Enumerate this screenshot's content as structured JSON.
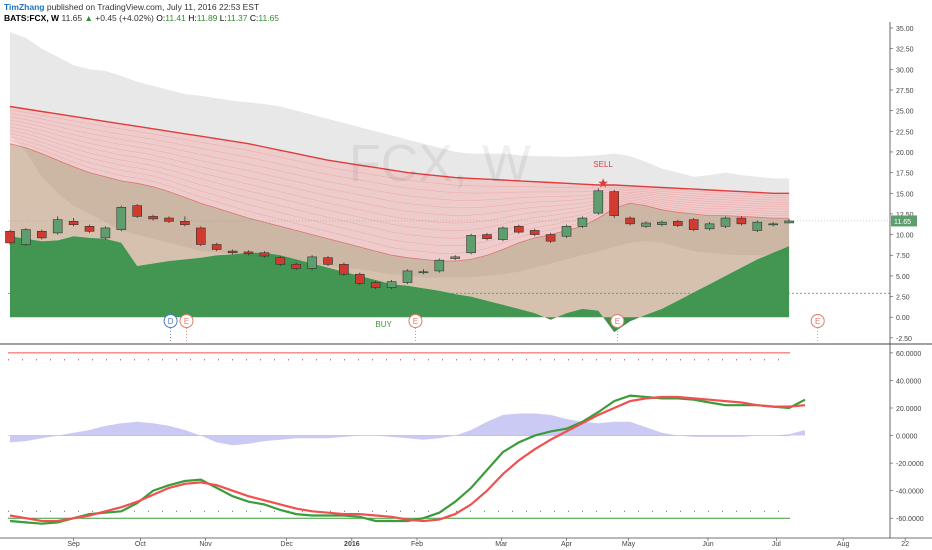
{
  "header": {
    "author": "TimZhang",
    "published": "published on TradingView.com, July 11, 2016 22:53 EST",
    "symbol": "BATS:FCX, W",
    "last": "11.65",
    "change": "+0.45 (+4.02%)",
    "open_label": "O:",
    "open": "11.41",
    "high_label": "H:",
    "high": "11.89",
    "low_label": "L:",
    "low": "11.37",
    "close_label": "C:",
    "close": "11.65"
  },
  "watermark": "FCX, W",
  "colors": {
    "up": "#5e9e6e",
    "down": "#d23a30",
    "macd": "#f05050",
    "signal": "#3c9c3c",
    "histogram": "#c4c4f4",
    "cloud": "#d9d9d9",
    "green_band": "#2e8b3e",
    "price_label": "#5e9e6e"
  },
  "chart_data": [
    {
      "type": "candlestick",
      "ylim": [
        -3,
        35
      ],
      "y_ticks": [
        -2.5,
        0,
        2.5,
        5,
        7.5,
        10,
        12.5,
        15,
        17.5,
        20,
        22.5,
        25,
        27.5,
        30,
        32.5,
        35
      ],
      "y_tick_labels": [
        "-2.50",
        "0.00",
        "2.50",
        "5.00",
        "7.50",
        "10.00",
        "12.50",
        "15.00",
        "17.50",
        "20.00",
        "22.50",
        "25.00",
        "27.50",
        "30.00",
        "32.50",
        "35.00"
      ],
      "x_labels": [
        "Sep",
        "Oct",
        "Nov",
        "Dec",
        "2016",
        "Feb",
        "Mar",
        "Apr",
        "May",
        "Jun",
        "Jul",
        "Aug",
        "22"
      ],
      "candles": [
        {
          "o": 10.4,
          "c": 9.0,
          "h": 10.6,
          "l": 8.8
        },
        {
          "o": 8.8,
          "c": 10.6,
          "h": 10.8,
          "l": 8.6
        },
        {
          "o": 10.4,
          "c": 9.6,
          "h": 10.6,
          "l": 9.4
        },
        {
          "o": 10.2,
          "c": 11.8,
          "h": 12.2,
          "l": 10.0
        },
        {
          "o": 11.6,
          "c": 11.2,
          "h": 12.0,
          "l": 11.0
        },
        {
          "o": 11.0,
          "c": 10.4,
          "h": 11.2,
          "l": 10.2
        },
        {
          "o": 9.6,
          "c": 10.8,
          "h": 11.0,
          "l": 9.4
        },
        {
          "o": 10.6,
          "c": 13.3,
          "h": 13.5,
          "l": 10.4
        },
        {
          "o": 13.5,
          "c": 12.2,
          "h": 13.7,
          "l": 12.0
        },
        {
          "o": 12.2,
          "c": 11.9,
          "h": 12.4,
          "l": 11.7
        },
        {
          "o": 12.0,
          "c": 11.6,
          "h": 12.2,
          "l": 11.4
        },
        {
          "o": 11.6,
          "c": 11.2,
          "h": 12.2,
          "l": 11.0
        },
        {
          "o": 10.8,
          "c": 8.8,
          "h": 11.0,
          "l": 8.6
        },
        {
          "o": 8.8,
          "c": 8.2,
          "h": 9.0,
          "l": 8.0
        },
        {
          "o": 8.0,
          "c": 7.8,
          "h": 8.2,
          "l": 7.6
        },
        {
          "o": 7.9,
          "c": 7.7,
          "h": 8.1,
          "l": 7.5
        },
        {
          "o": 7.8,
          "c": 7.4,
          "h": 8.0,
          "l": 7.2
        },
        {
          "o": 7.2,
          "c": 6.4,
          "h": 7.4,
          "l": 6.2
        },
        {
          "o": 6.4,
          "c": 5.9,
          "h": 6.6,
          "l": 5.7
        },
        {
          "o": 5.9,
          "c": 7.3,
          "h": 7.5,
          "l": 5.7
        },
        {
          "o": 7.2,
          "c": 6.4,
          "h": 7.4,
          "l": 6.2
        },
        {
          "o": 6.4,
          "c": 5.2,
          "h": 6.6,
          "l": 5.0
        },
        {
          "o": 5.2,
          "c": 4.1,
          "h": 5.4,
          "l": 3.9
        },
        {
          "o": 4.2,
          "c": 3.6,
          "h": 4.4,
          "l": 3.4
        },
        {
          "o": 3.6,
          "c": 4.3,
          "h": 4.5,
          "l": 3.4
        },
        {
          "o": 4.2,
          "c": 5.6,
          "h": 5.8,
          "l": 4.0
        },
        {
          "o": 5.4,
          "c": 5.5,
          "h": 5.8,
          "l": 5.2
        },
        {
          "o": 5.6,
          "c": 6.9,
          "h": 7.1,
          "l": 5.4
        },
        {
          "o": 7.1,
          "c": 7.3,
          "h": 7.5,
          "l": 6.9
        },
        {
          "o": 7.8,
          "c": 9.9,
          "h": 10.1,
          "l": 7.6
        },
        {
          "o": 10.0,
          "c": 9.5,
          "h": 10.2,
          "l": 9.3
        },
        {
          "o": 9.4,
          "c": 10.8,
          "h": 11.0,
          "l": 9.2
        },
        {
          "o": 11.0,
          "c": 10.3,
          "h": 11.2,
          "l": 10.1
        },
        {
          "o": 10.5,
          "c": 10.0,
          "h": 10.7,
          "l": 9.8
        },
        {
          "o": 10.0,
          "c": 9.2,
          "h": 10.2,
          "l": 9.0
        },
        {
          "o": 9.8,
          "c": 11.0,
          "h": 11.2,
          "l": 9.6
        },
        {
          "o": 11.0,
          "c": 12.0,
          "h": 12.2,
          "l": 10.8
        },
        {
          "o": 12.6,
          "c": 15.3,
          "h": 15.6,
          "l": 12.4
        },
        {
          "o": 15.2,
          "c": 12.3,
          "h": 15.4,
          "l": 12.0
        },
        {
          "o": 12.0,
          "c": 11.3,
          "h": 12.2,
          "l": 11.1
        },
        {
          "o": 11.0,
          "c": 11.4,
          "h": 11.6,
          "l": 10.8
        },
        {
          "o": 11.2,
          "c": 11.5,
          "h": 11.7,
          "l": 11.0
        },
        {
          "o": 11.6,
          "c": 11.1,
          "h": 11.8,
          "l": 10.9
        },
        {
          "o": 11.8,
          "c": 10.6,
          "h": 12.0,
          "l": 10.4
        },
        {
          "o": 10.7,
          "c": 11.3,
          "h": 11.5,
          "l": 10.5
        },
        {
          "o": 11.0,
          "c": 12.0,
          "h": 12.2,
          "l": 10.8
        },
        {
          "o": 12.0,
          "c": 11.3,
          "h": 12.2,
          "l": 11.1
        },
        {
          "o": 10.5,
          "c": 11.5,
          "h": 11.7,
          "l": 10.3
        },
        {
          "o": 11.2,
          "c": 11.3,
          "h": 11.5,
          "l": 11.0
        },
        {
          "o": 11.41,
          "c": 11.65,
          "h": 11.89,
          "l": 11.37
        }
      ],
      "cloud_upper": [
        34.5,
        33.8,
        32.5,
        31.5,
        30.5,
        30.0,
        29.8,
        29.2,
        28.5,
        28.0,
        27.5,
        27.0,
        26.8,
        26.5,
        26.2,
        26.0,
        25.8,
        25.5,
        25.0,
        24.5,
        24.0,
        23.5,
        23.0,
        22.5,
        22.0,
        21.5,
        21.0,
        20.5,
        20.0,
        19.8,
        19.8,
        19.8,
        19.6,
        19.5,
        19.5,
        19.4,
        19.5,
        19.6,
        19.8,
        19.5,
        18.8,
        18.0,
        17.5,
        17.0,
        17.2,
        17.5,
        17.2,
        17.0,
        16.8,
        16.8
      ],
      "cloud_lower": [
        22.0,
        20.0,
        17.0,
        15.0,
        13.5,
        12.5,
        11.5,
        10.5,
        10.0,
        9.5,
        9.0,
        8.5,
        8.0,
        7.8,
        7.6,
        7.4,
        7.2,
        7.0,
        6.8,
        6.5,
        6.2,
        6.0,
        5.8,
        5.5,
        5.2,
        5.0,
        4.8,
        4.8,
        4.8,
        4.8,
        5.0,
        5.2,
        5.5,
        6.0,
        6.5,
        7.0,
        7.5,
        8.0,
        8.5,
        9.0,
        9.2,
        9.0,
        8.5,
        8.0,
        7.8,
        7.6,
        7.5,
        7.5,
        7.5,
        7.5
      ],
      "ema_long": [
        25.5,
        25.2,
        24.9,
        24.6,
        24.3,
        24.0,
        23.7,
        23.4,
        23.1,
        22.8,
        22.5,
        22.2,
        21.9,
        21.6,
        21.3,
        21.0,
        20.6,
        20.2,
        19.8,
        19.4,
        19.0,
        18.7,
        18.4,
        18.1,
        17.8,
        17.5,
        17.3,
        17.1,
        16.9,
        16.8,
        16.7,
        16.6,
        16.5,
        16.4,
        16.3,
        16.2,
        16.1,
        16.0,
        16.0,
        15.9,
        15.8,
        15.7,
        15.6,
        15.5,
        15.4,
        15.3,
        15.2,
        15.1,
        15.0,
        15.0
      ],
      "ema_short": [
        21.0,
        20.5,
        19.8,
        19.0,
        18.2,
        17.5,
        17.0,
        16.5,
        16.2,
        15.8,
        15.2,
        14.5,
        13.8,
        13.2,
        12.6,
        12.0,
        11.5,
        11.0,
        10.5,
        10.0,
        9.5,
        9.0,
        8.5,
        8.0,
        7.5,
        7.2,
        7.0,
        6.8,
        6.8,
        7.0,
        7.5,
        8.2,
        9.0,
        9.6,
        10.0,
        10.5,
        11.0,
        12.0,
        13.2,
        13.8,
        13.5,
        13.0,
        12.7,
        12.5,
        12.3,
        12.3,
        12.2,
        12.1,
        12.0,
        12.0
      ],
      "green_top": [
        9.8,
        9.5,
        9.2,
        9.3,
        9.8,
        9.6,
        9.5,
        9.0,
        6.2,
        6.5,
        6.8,
        7.0,
        7.2,
        7.5,
        7.6,
        7.8,
        7.8,
        7.5,
        7.0,
        6.5,
        6.0,
        5.5,
        5.0,
        4.5,
        4.0,
        3.8,
        3.5,
        3.2,
        2.8,
        2.5,
        2.0,
        1.5,
        1.0,
        0.5,
        -0.3,
        0.5,
        1.0,
        0.8,
        -1.8,
        -0.5,
        0.3,
        1.0,
        2.0,
        3.0,
        4.0,
        5.0,
        6.0,
        7.0,
        7.8,
        8.6
      ],
      "annotations": [
        {
          "text": "SELL",
          "x": 37.3,
          "y": 18.2
        },
        {
          "text": "BUY",
          "x": 23.5,
          "y": -1.2
        }
      ],
      "sell_star": {
        "x": 37.3,
        "y": 16.2
      },
      "event_markers": [
        {
          "text": "D",
          "x": 10.1,
          "color": "#4a7bbf"
        },
        {
          "text": "E",
          "x": 11.1,
          "color": "#e07a6a"
        },
        {
          "text": "E",
          "x": 25.5,
          "color": "#e07a6a"
        },
        {
          "text": "E",
          "x": 38.2,
          "color": "#e07a6a"
        },
        {
          "text": "E",
          "x": 50.8,
          "color": "#e07a6a"
        }
      ],
      "last_price_label": "11.65",
      "current_price": 11.65,
      "hline_level": 2.9
    },
    {
      "type": "line",
      "ylim": [
        -70,
        65
      ],
      "y_ticks": [
        60,
        40,
        20,
        0,
        -20,
        -40,
        -60
      ],
      "y_tick_labels": [
        "60.0000",
        "40.0000",
        "20.0000",
        "0.0000",
        "-20.0000",
        "-40.0000",
        "-60.0000"
      ],
      "upper_band": 55,
      "lower_band": -55,
      "upper_line": 60,
      "lower_line": -60,
      "series": [
        {
          "values": [
            -58,
            -60,
            -62,
            -62,
            -60,
            -58,
            -55,
            -52,
            -48,
            -43,
            -38,
            -35,
            -34,
            -36,
            -40,
            -44,
            -47,
            -50,
            -53,
            -55,
            -56,
            -57,
            -57,
            -58,
            -59,
            -61,
            -62,
            -61,
            -57,
            -50,
            -40,
            -28,
            -18,
            -10,
            -3,
            3,
            9,
            15,
            20,
            25,
            27,
            28,
            28,
            27,
            26,
            25,
            24,
            22,
            21,
            21,
            22
          ]
        },
        {
          "values": [
            -62,
            -63,
            -64,
            -63,
            -60,
            -57,
            -56,
            -55,
            -49,
            -40,
            -36,
            -33,
            -32,
            -38,
            -44,
            -48,
            -50,
            -54,
            -57,
            -58,
            -58,
            -58,
            -59,
            -62,
            -62,
            -62,
            -60,
            -56,
            -48,
            -38,
            -25,
            -12,
            -5,
            0,
            3,
            5,
            10,
            17,
            25,
            29,
            28,
            27,
            27,
            26,
            24,
            22,
            22,
            22,
            21,
            20,
            26
          ]
        },
        {
          "values": [
            -5,
            -4,
            -2,
            0,
            2,
            4,
            7,
            9,
            10,
            9,
            7,
            4,
            0,
            -5,
            -7,
            -6,
            -4,
            -3,
            -2,
            -2,
            -2,
            -1,
            0,
            0,
            -1,
            -2,
            -3,
            -2,
            0,
            4,
            10,
            15,
            16,
            16,
            15,
            12,
            10,
            9,
            10,
            10,
            6,
            2,
            0,
            -1,
            -1,
            -1,
            -1,
            0,
            0,
            1,
            4
          ]
        }
      ]
    }
  ]
}
